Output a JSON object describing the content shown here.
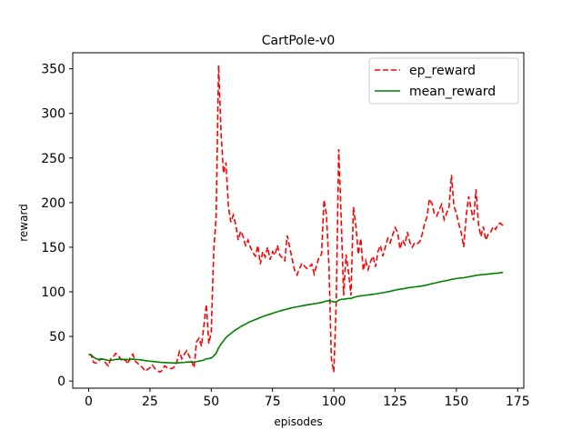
{
  "chart_data": {
    "type": "line",
    "title": "CartPole-v0",
    "xlabel": "episodes",
    "ylabel": "reward",
    "xlim": [
      -6.5,
      177.5
    ],
    "ylim": [
      -8,
      368
    ],
    "xticks": [
      0,
      25,
      50,
      75,
      100,
      125,
      150,
      175
    ],
    "yticks": [
      0,
      50,
      100,
      150,
      200,
      250,
      300,
      350
    ],
    "grid": false,
    "legend": "top-right",
    "series": [
      {
        "name": "ep_reward",
        "color": "#ff0000",
        "style": "dashed",
        "values": [
          30,
          29,
          21,
          20,
          22,
          25,
          24,
          20,
          17,
          25,
          27,
          31,
          29,
          25,
          22,
          24,
          19,
          27,
          30,
          22,
          20,
          17,
          15,
          11,
          13,
          15,
          18,
          14,
          12,
          10,
          12,
          17,
          15,
          14,
          14,
          16,
          22,
          33,
          25,
          30,
          34,
          28,
          22,
          15,
          44,
          48,
          39,
          62,
          86,
          42,
          55,
          145,
          185,
          354,
          278,
          233,
          245,
          195,
          178,
          186,
          175,
          158,
          168,
          162,
          152,
          158,
          150,
          144,
          140,
          152,
          131,
          145,
          139,
          150,
          136,
          145,
          141,
          152,
          141,
          138,
          135,
          163,
          150,
          137,
          124,
          119,
          126,
          132,
          129,
          126,
          128,
          131,
          120,
          130,
          139,
          142,
          203,
          186,
          130,
          25,
          10,
          90,
          260,
          183,
          96,
          142,
          122,
          96,
          195,
          174,
          142,
          160,
          124,
          135,
          125,
          134,
          140,
          128,
          145,
          152,
          140,
          150,
          160,
          155,
          164,
          172,
          167,
          148,
          158,
          153,
          167,
          156,
          150,
          155,
          154,
          156,
          164,
          176,
          184,
          204,
          199,
          188,
          185,
          192,
          198,
          181,
          188,
          195,
          231,
          196,
          188,
          176,
          166,
          150,
          185,
          207,
          193,
          180,
          215,
          176,
          162,
          173,
          158,
          165,
          167,
          173,
          170,
          176,
          177,
          174
        ],
        "mean_values": [
          30,
          29.5,
          26.7,
          25,
          24.4,
          24.5,
          24.4,
          23.9,
          23.1,
          23.3,
          23.6,
          24.2,
          24.5,
          24.5,
          24.3,
          24.3,
          24,
          24.2,
          24.5,
          24.3,
          24.1,
          23.8,
          23.4,
          22.9,
          22.5,
          22.2,
          22,
          21.7,
          21.4,
          21.1,
          20.8,
          20.7,
          20.6,
          20.4,
          20.3,
          20.2,
          20.2,
          20.6,
          20.7,
          20.9,
          21.2,
          21.4,
          21.4,
          21.3,
          21.8,
          22.4,
          22.8,
          23.6,
          24.9,
          25.2,
          25.8,
          28.1,
          31.1,
          37.1,
          41.6,
          45,
          48.6,
          51.1,
          53.3,
          55.5,
          57.5,
          59.1,
          60.9,
          62.5,
          63.9,
          65.4,
          66.7,
          67.8,
          68.9,
          70,
          71.2,
          72.2,
          73.2,
          74.2,
          75,
          75.9,
          76.8,
          77.7,
          78.5,
          79.3,
          80,
          80.8,
          81.5,
          82.2,
          82.7,
          83.2,
          83.7,
          84.3,
          84.8,
          85.3,
          85.8,
          86.2,
          86.6,
          87,
          87.6,
          88.1,
          89,
          89.7,
          90.1,
          89.5,
          88.7,
          88.7,
          90.6,
          91.6,
          91.6,
          92.2,
          92.6,
          92.6,
          93.6,
          94.4,
          94.9,
          95.5,
          95.8,
          96.2,
          96.5,
          96.9,
          97.3,
          97.6,
          98.1,
          98.6,
          99,
          99.5,
          100.1,
          100.6,
          101.2,
          101.9,
          102.5,
          102.9,
          103.4,
          103.8,
          104.4,
          104.8,
          105.1,
          105.5,
          105.8,
          106.2,
          106.6,
          107.1,
          107.7,
          108.4,
          109.1,
          109.7,
          110.3,
          111,
          111.6,
          112.1,
          112.6,
          113.2,
          114,
          114.5,
          114.9,
          115.3,
          115.6,
          115.8,
          116.3,
          116.8,
          117.4,
          117.8,
          118.5,
          118.8,
          119.1,
          119.4,
          119.6,
          119.9,
          120.2,
          120.6,
          120.8,
          121,
          121.5,
          121.8
        ]
      },
      {
        "name": "mean_reward",
        "color": "#008000",
        "style": "solid"
      }
    ]
  }
}
